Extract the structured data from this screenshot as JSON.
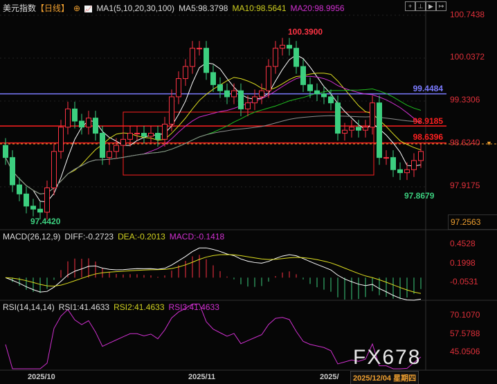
{
  "header": {
    "title": "美元指数",
    "period": "【日线】",
    "ma_label": "MA1(5,10,20,30,100)",
    "ma5": "MA5:98.3798",
    "ma10": "MA10:98.5641",
    "ma20": "MA20:98.9956"
  },
  "macd_header": {
    "label": "MACD(26,12,9)",
    "diff": "DIFF:-0.2723",
    "dea": "DEA:-0.2013",
    "macd": "MACD:-0.1418"
  },
  "rsi_header": {
    "label": "RSI(14,14,14)",
    "rsi1": "RSI1:41.4633",
    "rsi2": "RSI2:41.4633",
    "rsi3": "RSI3:41.4633"
  },
  "price_axis": [
    "100.7438",
    "100.0372",
    "99.3306",
    "98.6240",
    "97.9175"
  ],
  "price_axis_values": [
    100.7438,
    100.0372,
    99.3306,
    98.624,
    97.9175
  ],
  "panel_readout": "97.2563",
  "macd_axis": [
    "0.4528",
    "0.1998",
    "-0.0531"
  ],
  "rsi_axis": [
    "70.1070",
    "57.5788",
    "45.0506"
  ],
  "levels": [
    {
      "label": "99.4484",
      "value": 99.4484,
      "color": "#7b7bff"
    },
    {
      "label": "98.9185",
      "value": 98.9185,
      "color": "#ff2020"
    },
    {
      "label": "98.6396",
      "value": 98.6396,
      "color": "#ff2020"
    }
  ],
  "current_price": 98.624,
  "annotations": {
    "high": "100.3900",
    "low1": "97.4420",
    "low2": "97.8679"
  },
  "dates": {
    "d1": "2025/10",
    "d2": "2025/11",
    "d3": "2025/",
    "current": "2025/12/04 星期四"
  },
  "watermark": "FX678",
  "colors": {
    "up": "#ff3344",
    "down": "#3ccf7f",
    "ma5": "#ffffff",
    "ma10": "#e0e020",
    "ma20": "#d030d0",
    "ma30": "#20c020",
    "ma100": "#909090"
  },
  "chart_data": {
    "type": "candlestick",
    "ylim": [
      97.2563,
      100.7438
    ],
    "close": [
      98.4,
      97.95,
      97.8,
      97.6,
      97.55,
      97.5,
      97.9,
      98.5,
      98.9,
      99.2,
      99.0,
      98.9,
      99.05,
      98.8,
      98.4,
      98.5,
      98.6,
      98.7,
      98.8,
      98.8,
      98.75,
      98.8,
      98.7,
      98.95,
      99.4,
      99.7,
      99.9,
      100.2,
      100.2,
      99.8,
      99.6,
      99.5,
      99.4,
      99.5,
      99.2,
      99.3,
      99.4,
      99.5,
      99.9,
      100.2,
      100.25,
      100.2,
      99.9,
      99.6,
      99.5,
      99.45,
      99.4,
      99.3,
      98.8,
      98.85,
      98.9,
      98.85,
      98.9,
      99.3,
      98.4,
      98.4,
      98.2,
      98.15,
      98.2,
      98.35,
      98.5
    ]
  }
}
